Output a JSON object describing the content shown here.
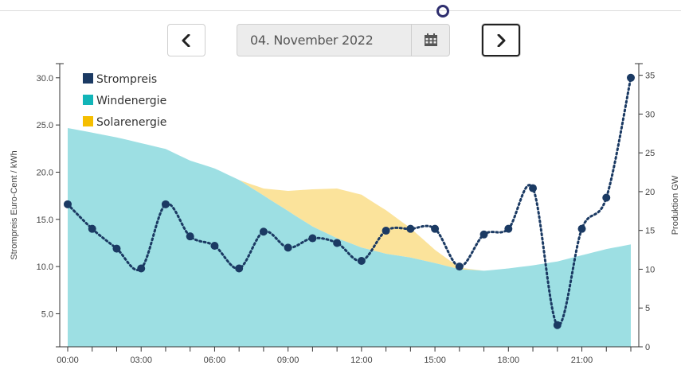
{
  "nav": {
    "date_value": "04. November 2022",
    "prev_icon": "chevron-left-icon",
    "next_icon": "chevron-right-icon",
    "calendar_icon": "calendar-icon"
  },
  "chart_data": {
    "type": "line",
    "y_left_label": "Strompreis Euro-Cent / kWh",
    "y_right_label": "Produktion GW",
    "y_left_lim": [
      1.5,
      31.5
    ],
    "y_right_lim": [
      0,
      36.5
    ],
    "y_left_ticks": [
      "30.0",
      "25.0",
      "20.0",
      "15.0",
      "10.0",
      "5.0"
    ],
    "y_right_ticks": [
      "35",
      "30",
      "25",
      "20",
      "15",
      "10",
      "5",
      "0"
    ],
    "x_ticks": [
      "00:00",
      "03:00",
      "06:00",
      "09:00",
      "12:00",
      "15:00",
      "18:00",
      "21:00"
    ],
    "x_hours": [
      0,
      23
    ],
    "colors": {
      "strompreis": "#1b3a63",
      "windenergie": "#9ddfe3",
      "solarenergie": "#fbe39b"
    },
    "legend": [
      {
        "name": "Strompreis",
        "color": "#1b3a63"
      },
      {
        "name": "Windenergie",
        "color": "#12b5b8"
      },
      {
        "name": "Solarenergie",
        "color": "#f5be00"
      }
    ],
    "series": [
      {
        "name": "Strompreis",
        "axis": "left",
        "x": [
          0,
          1,
          2,
          3,
          4,
          5,
          6,
          7,
          8,
          9,
          10,
          11,
          12,
          13,
          14,
          15,
          16,
          17,
          18,
          19,
          20,
          21,
          22,
          23
        ],
        "values": [
          16.6,
          14.0,
          11.9,
          9.8,
          16.6,
          13.2,
          12.2,
          9.8,
          13.7,
          12.0,
          13.0,
          12.5,
          10.6,
          13.8,
          14.0,
          14.0,
          10.0,
          13.4,
          14.0,
          18.3,
          3.8,
          14.0,
          17.3,
          30.0
        ]
      },
      {
        "name": "Windenergie",
        "axis": "right",
        "x": [
          0,
          2,
          4,
          5,
          6,
          7,
          8,
          9,
          10,
          11,
          12,
          13,
          14,
          15,
          16,
          17,
          18,
          19,
          20,
          21,
          22,
          23
        ],
        "values": [
          28.2,
          27.0,
          25.5,
          24.0,
          23.0,
          21.5,
          19.5,
          17.5,
          15.5,
          14.0,
          12.8,
          12.0,
          11.5,
          10.8,
          10.0,
          9.8,
          10.1,
          10.5,
          11.0,
          11.8,
          12.6,
          13.2
        ]
      },
      {
        "name": "Solarenergie",
        "axis": "right",
        "x": [
          0,
          7,
          8,
          9,
          10,
          11,
          12,
          13,
          14,
          15,
          16,
          17,
          23
        ],
        "values": [
          0,
          0,
          0.9,
          2.6,
          4.8,
          6.4,
          6.8,
          5.6,
          3.8,
          1.7,
          0.2,
          0,
          0
        ]
      }
    ]
  }
}
